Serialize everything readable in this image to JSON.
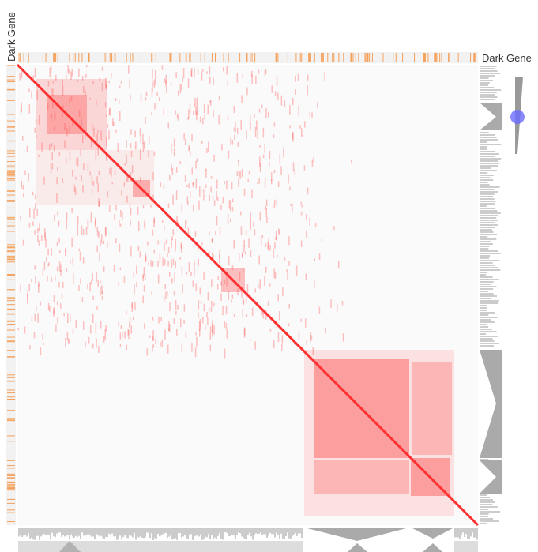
{
  "labels": {
    "left_dark_gene": "Dark Gene",
    "top_dark_gene": "Dark Gene"
  }
}
